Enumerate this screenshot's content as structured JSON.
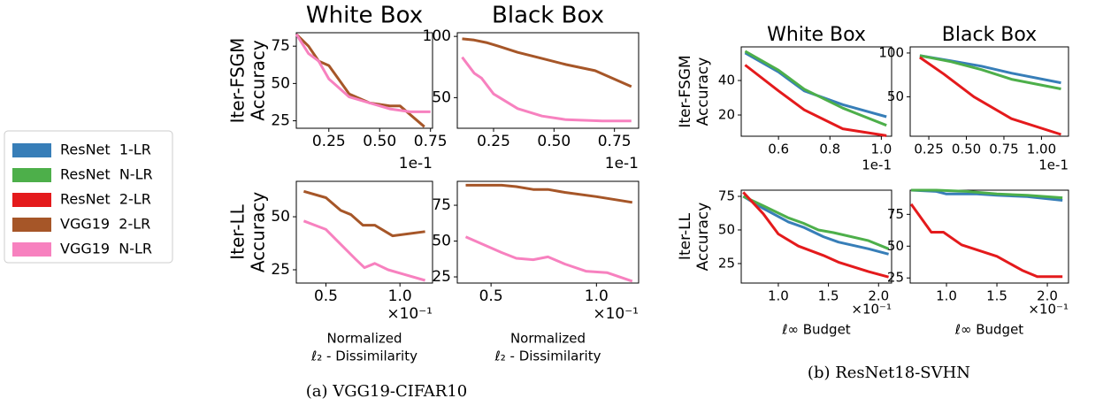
{
  "chart_data": [
    {
      "type": "line",
      "title": "White Box",
      "ylabel": [
        "Iter-FSGM",
        "Accuracy"
      ],
      "x_offset": "1e-1",
      "xlim": [
        0.09,
        0.76
      ],
      "xticks": [
        0.25,
        {
          "value": 0.5,
          "label": "0.50"
        },
        0.75
      ],
      "ylim": [
        20,
        84
      ],
      "yticks": [
        25,
        50,
        75
      ],
      "series": [
        {
          "name": "VGG19  2-LR",
          "color": "#a65628",
          "x": [
            0.09,
            0.15,
            0.2,
            0.25,
            0.35,
            0.45,
            0.55,
            0.6,
            0.72
          ],
          "values": [
            83,
            75,
            65,
            62,
            43,
            37,
            35,
            35,
            21
          ]
        },
        {
          "name": "VGG19  N-LR",
          "color": "#f781bf",
          "x": [
            0.09,
            0.15,
            0.2,
            0.25,
            0.35,
            0.45,
            0.55,
            0.65,
            0.75
          ],
          "values": [
            83,
            70,
            65,
            53,
            41,
            37,
            33,
            31,
            31
          ]
        }
      ]
    },
    {
      "type": "line",
      "title": "Black Box",
      "x_offset": "1e-1",
      "xlim": [
        0.1,
        0.85
      ],
      "xticks": [
        0.25,
        {
          "value": 0.5,
          "label": "0.50"
        },
        0.75
      ],
      "ylim": [
        25,
        103
      ],
      "yticks": [
        50,
        100
      ],
      "series": [
        {
          "name": "VGG19  2-LR",
          "color": "#a65628",
          "x": [
            0.12,
            0.17,
            0.22,
            0.27,
            0.35,
            0.45,
            0.55,
            0.67,
            0.82
          ],
          "values": [
            98,
            97,
            95,
            92,
            87,
            82,
            77,
            72,
            59
          ]
        },
        {
          "name": "VGG19  N-LR",
          "color": "#f781bf",
          "x": [
            0.12,
            0.17,
            0.2,
            0.25,
            0.35,
            0.45,
            0.55,
            0.7,
            0.82
          ],
          "values": [
            83,
            70,
            66,
            53,
            41,
            35,
            32,
            31,
            31
          ]
        }
      ]
    },
    {
      "type": "line",
      "ylabel": [
        "Iter-LL",
        "Accuracy"
      ],
      "xlabel": [
        "Normalized",
        "ℓ₂ - Dissimilarity"
      ],
      "x_offset": "×10⁻¹",
      "xlim": [
        0.3,
        1.22
      ],
      "xticks": [
        0.5,
        {
          "value": 1,
          "label": "1.0"
        }
      ],
      "ylim": [
        18.75,
        66.7
      ],
      "yticks": [
        25,
        50
      ],
      "series": [
        {
          "name": "VGG19  2-LR",
          "color": "#a65628",
          "x": [
            0.35,
            0.5,
            0.6,
            0.67,
            0.75,
            0.83,
            0.95,
            1.17
          ],
          "values": [
            62,
            59,
            53,
            51,
            46,
            46,
            41,
            43
          ]
        },
        {
          "name": "VGG19  N-LR",
          "color": "#f781bf",
          "x": [
            0.35,
            0.5,
            0.6,
            0.7,
            0.76,
            0.83,
            0.92,
            1.02,
            1.17
          ],
          "values": [
            48,
            44,
            37,
            30,
            26,
            28,
            25,
            23,
            20
          ]
        }
      ]
    },
    {
      "type": "line",
      "xlabel": [
        "Normalized",
        "ℓ₂ - Dissimilarity"
      ],
      "x_offset": "×10⁻¹",
      "xlim": [
        0.34,
        1.2
      ],
      "xticks": [
        0.5,
        {
          "value": 1,
          "label": "1.0"
        }
      ],
      "ylim": [
        20.7,
        91.7
      ],
      "yticks": [
        25,
        50,
        75
      ],
      "series": [
        {
          "name": "VGG19  2-LR",
          "color": "#a65628",
          "x": [
            0.38,
            0.55,
            0.62,
            0.7,
            0.77,
            0.85,
            1.0,
            1.17
          ],
          "values": [
            89,
            89,
            88,
            86,
            86,
            84,
            81,
            77
          ]
        },
        {
          "name": "VGG19  N-LR",
          "color": "#f781bf",
          "x": [
            0.38,
            0.55,
            0.62,
            0.7,
            0.77,
            0.85,
            0.95,
            1.05,
            1.17
          ],
          "values": [
            53,
            42,
            38,
            37,
            39,
            34,
            29,
            28,
            22
          ]
        }
      ]
    },
    {
      "type": "line",
      "title": "White Box",
      "ylabel": [
        "Iter-FSGM",
        "Accuracy"
      ],
      "x_offset": "1e-1",
      "xlim": [
        0.455,
        1.04
      ],
      "xticks": [
        0.6,
        0.8,
        {
          "value": 1,
          "label": "1.0"
        }
      ],
      "ylim": [
        7.7,
        59.5
      ],
      "yticks": [
        20,
        40
      ],
      "series": [
        {
          "name": "ResNet  1-LR",
          "color": "#377eb8",
          "x": [
            0.47,
            0.6,
            0.7,
            0.85,
            1.02
          ],
          "values": [
            56,
            45,
            34,
            26,
            19
          ]
        },
        {
          "name": "ResNet  N-LR",
          "color": "#4daf4a",
          "x": [
            0.47,
            0.6,
            0.7,
            0.85,
            1.02
          ],
          "values": [
            57,
            46,
            35,
            24,
            14
          ]
        },
        {
          "name": "ResNet  2-LR",
          "color": "#e41a1c",
          "x": [
            0.47,
            0.6,
            0.7,
            0.85,
            1.02
          ],
          "values": [
            49,
            34,
            23,
            12,
            8
          ]
        }
      ]
    },
    {
      "type": "line",
      "title": "Black Box",
      "x_offset": "1e-1",
      "xlim": [
        0.126,
        1.18
      ],
      "xticks": [
        0.25,
        {
          "value": 0.5,
          "label": "0.50"
        },
        0.75,
        {
          "value": 1,
          "label": "1.00"
        }
      ],
      "ylim": [
        5,
        107
      ],
      "yticks": [
        50,
        100
      ],
      "series": [
        {
          "name": "ResNet  1-LR",
          "color": "#377eb8",
          "x": [
            0.19,
            0.4,
            0.6,
            0.8,
            1.13
          ],
          "values": [
            97,
            91,
            85,
            77,
            66
          ]
        },
        {
          "name": "ResNet  N-LR",
          "color": "#4daf4a",
          "x": [
            0.19,
            0.4,
            0.6,
            0.8,
            1.13
          ],
          "values": [
            97,
            90,
            81,
            70,
            59
          ]
        },
        {
          "name": "ResNet  2-LR",
          "color": "#e41a1c",
          "x": [
            0.19,
            0.35,
            0.55,
            0.8,
            1.13
          ],
          "values": [
            95,
            76,
            50,
            25,
            7
          ]
        }
      ]
    },
    {
      "type": "line",
      "ylabel": [
        "Iter-LL",
        "Accuracy"
      ],
      "xlabel": [
        "ℓ∞ Budget"
      ],
      "x_offset": "×10⁻¹",
      "xlim": [
        0.63,
        2.13
      ],
      "xticks": [
        {
          "value": 1,
          "label": "1.0"
        },
        1.5,
        {
          "value": 2,
          "label": "2.0"
        }
      ],
      "ylim": [
        10.5,
        79.6
      ],
      "yticks": [
        25,
        50,
        75
      ],
      "series": [
        {
          "name": "ResNet  1-LR",
          "color": "#377eb8",
          "x": [
            0.65,
            0.85,
            1.1,
            1.25,
            1.45,
            1.6,
            1.9,
            2.1
          ],
          "values": [
            75,
            66,
            56,
            52,
            45,
            41,
            36,
            32
          ]
        },
        {
          "name": "ResNet  N-LR",
          "color": "#4daf4a",
          "x": [
            0.65,
            0.85,
            1.1,
            1.25,
            1.4,
            1.55,
            1.9,
            2.1
          ],
          "values": [
            75,
            68,
            59,
            55,
            50,
            48,
            42,
            36
          ]
        },
        {
          "name": "ResNet  2-LR",
          "color": "#e41a1c",
          "x": [
            0.65,
            0.85,
            1.0,
            1.2,
            1.45,
            1.6,
            1.9,
            2.1
          ],
          "values": [
            78,
            62,
            47,
            38,
            31,
            26,
            19,
            15
          ]
        }
      ]
    },
    {
      "type": "line",
      "xlabel": [
        "ℓ∞ Budget"
      ],
      "x_offset": "×10⁻¹",
      "xlim": [
        0.64,
        2.21
      ],
      "xticks": [
        {
          "value": 1,
          "label": "1.0"
        },
        1.5,
        {
          "value": 2,
          "label": "2.0"
        }
      ],
      "ylim": [
        21,
        94
      ],
      "yticks": [
        25,
        50,
        75
      ],
      "series": [
        {
          "name": "ResNet  1-LR",
          "color": "#377eb8",
          "x": [
            0.65,
            0.9,
            1.0,
            1.3,
            1.5,
            1.8,
            2.15
          ],
          "values": [
            94,
            93,
            91,
            91,
            90,
            89,
            86
          ]
        },
        {
          "name": "ResNet  N-LR",
          "color": "#4daf4a",
          "x": [
            0.65,
            0.9,
            1.2,
            1.5,
            1.8,
            2.15
          ],
          "values": [
            94,
            94,
            93,
            91,
            90,
            88
          ]
        },
        {
          "name": "ResNet  2-LR",
          "color": "#e41a1c",
          "x": [
            0.65,
            0.85,
            0.97,
            1.15,
            1.5,
            1.75,
            1.9,
            2.15
          ],
          "values": [
            83,
            61,
            61,
            51,
            42,
            31,
            26,
            26
          ]
        }
      ]
    }
  ],
  "captions": [
    "(a) VGG19-CIFAR10",
    "(b) ResNet18-SVHN"
  ]
}
